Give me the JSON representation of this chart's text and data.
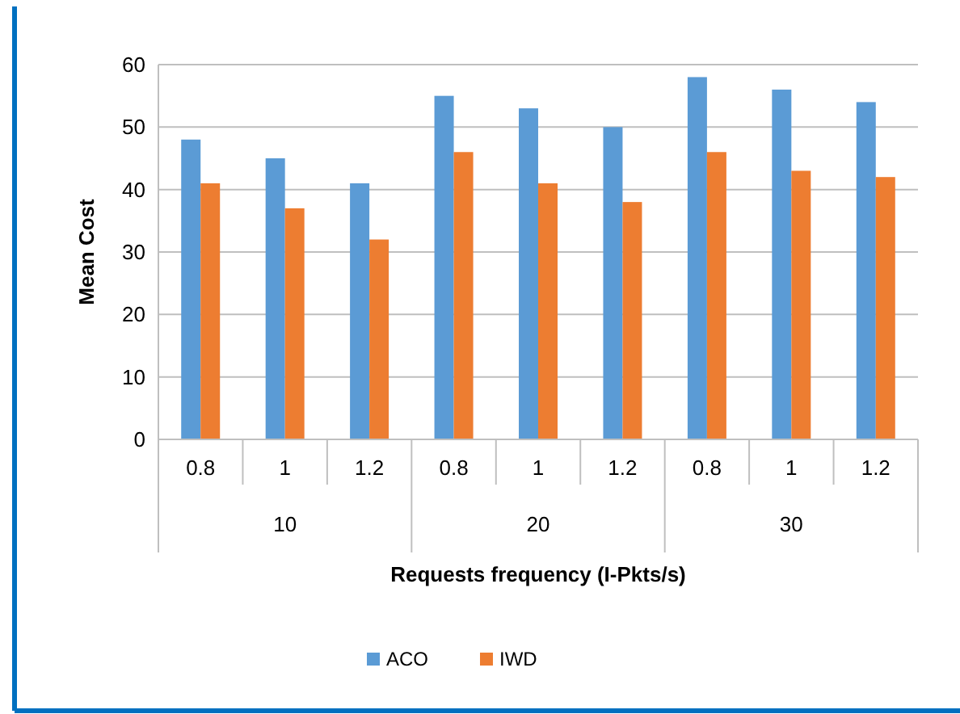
{
  "chart_data": {
    "type": "bar",
    "xlabel": "Requests frequency (I-Pkts/s)",
    "ylabel": "Mean Cost",
    "categories": [
      "0.8",
      "1",
      "1.2",
      "0.8",
      "1",
      "1.2",
      "0.8",
      "1",
      "1.2"
    ],
    "series": [
      {
        "name": "ACO",
        "color": "#5b9bd5",
        "values": [
          48,
          45,
          41,
          55,
          53,
          50,
          58,
          56,
          54
        ]
      },
      {
        "name": "IWD",
        "color": "#ed7d31",
        "values": [
          41,
          37,
          32,
          46,
          41,
          38,
          46,
          43,
          42
        ]
      }
    ],
    "annotations": [
      "10",
      "20",
      "30"
    ],
    "ylim": [
      0,
      60
    ],
    "yticks": [
      0,
      10,
      20,
      30,
      40,
      50,
      60
    ],
    "grid": "y",
    "legend": "bottom"
  }
}
